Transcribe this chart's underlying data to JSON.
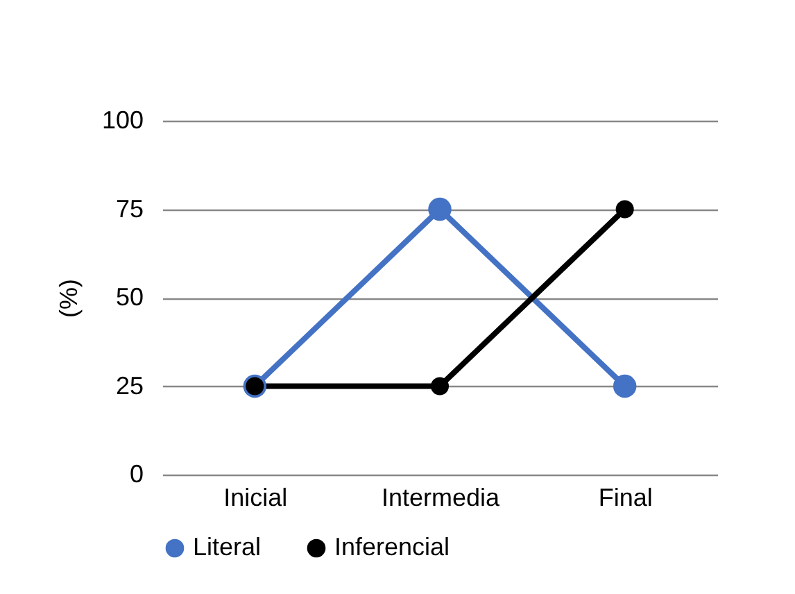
{
  "chart_data": {
    "type": "line",
    "categories": [
      "Inicial",
      "Intermedia",
      "Final"
    ],
    "ylabel": "(%)",
    "ylim": [
      0,
      100
    ],
    "yticks": [
      0,
      25,
      50,
      75,
      100
    ],
    "grid": "y",
    "legend": "bottom",
    "marker": "circle",
    "line_style": "solid",
    "series": [
      {
        "name": "Literal",
        "color": "#4472c4",
        "values": [
          25,
          75,
          25
        ]
      },
      {
        "name": "Inferencial",
        "color": "#000000",
        "values": [
          25,
          25,
          75
        ]
      }
    ]
  }
}
